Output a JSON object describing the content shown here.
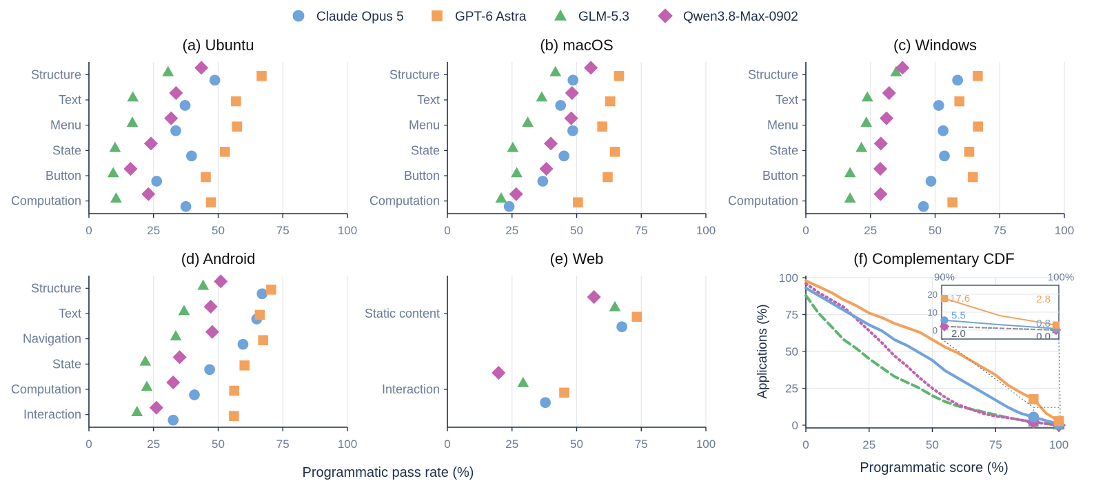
{
  "legend": {
    "placement": "top-center",
    "items": [
      {
        "label": "Claude Opus 5",
        "marker": "circle",
        "color": "#6fa3dc"
      },
      {
        "label": "GPT-6 Astra",
        "marker": "square",
        "color": "#f4a15c"
      },
      {
        "label": "GLM-5.3",
        "marker": "triangle",
        "color": "#5fb56f"
      },
      {
        "label": "Qwen3.8-Max-0902",
        "marker": "diamond",
        "color": "#c261b0"
      }
    ]
  },
  "shared_xlabel": "Programmatic pass rate (%)",
  "chart_data": [
    {
      "type": "scatter",
      "title": "(a) Ubuntu",
      "xlim": [
        0,
        100
      ],
      "xticks": [
        0,
        25,
        50,
        75,
        100
      ],
      "grid": true,
      "categories": [
        "Structure",
        "Text",
        "Menu",
        "State",
        "Button",
        "Computation"
      ],
      "series": [
        {
          "name": "Claude Opus 5",
          "values": [
            48.7,
            37.2,
            33.6,
            39.7,
            26.2,
            37.5
          ]
        },
        {
          "name": "GPT-6 Astra",
          "values": [
            66.8,
            56.9,
            57.3,
            52.6,
            45.2,
            47.2
          ]
        },
        {
          "name": "GLM-5.3",
          "values": [
            30.6,
            17.0,
            16.8,
            10.1,
            9.4,
            10.5
          ]
        },
        {
          "name": "Qwen3.8-Max-0902",
          "values": [
            43.5,
            33.7,
            31.8,
            24.0,
            16.1,
            23.0
          ]
        }
      ]
    },
    {
      "type": "scatter",
      "title": "(b) macOS",
      "xlim": [
        0,
        100
      ],
      "xticks": [
        0,
        25,
        50,
        75,
        100
      ],
      "grid": true,
      "categories": [
        "Structure",
        "Text",
        "Menu",
        "State",
        "Button",
        "Computation"
      ],
      "series": [
        {
          "name": "Claude Opus 5",
          "values": [
            48.6,
            43.8,
            48.5,
            45.1,
            36.9,
            23.9
          ]
        },
        {
          "name": "GPT-6 Astra",
          "values": [
            66.4,
            63.0,
            59.9,
            64.8,
            62.0,
            50.5
          ]
        },
        {
          "name": "GLM-5.3",
          "values": [
            41.8,
            36.5,
            31.1,
            25.3,
            26.8,
            20.8
          ]
        },
        {
          "name": "Qwen3.8-Max-0902",
          "values": [
            55.5,
            48.2,
            47.9,
            40.0,
            38.3,
            26.6
          ]
        }
      ]
    },
    {
      "type": "scatter",
      "title": "(c) Windows",
      "xlim": [
        0,
        100
      ],
      "xticks": [
        0,
        25,
        50,
        75,
        100
      ],
      "grid": true,
      "categories": [
        "Structure",
        "Text",
        "Menu",
        "State",
        "Button",
        "Computation"
      ],
      "series": [
        {
          "name": "Claude Opus 5",
          "values": [
            58.7,
            51.4,
            53.1,
            53.6,
            48.4,
            45.5
          ]
        },
        {
          "name": "GPT-6 Astra",
          "values": [
            66.5,
            59.4,
            66.6,
            63.2,
            64.6,
            56.7
          ]
        },
        {
          "name": "GLM-5.3",
          "values": [
            34.9,
            23.8,
            23.4,
            21.5,
            17.1,
            17.1
          ]
        },
        {
          "name": "Qwen3.8-Max-0902",
          "values": [
            37.4,
            32.2,
            31.2,
            29.0,
            28.8,
            28.9
          ]
        }
      ]
    },
    {
      "type": "scatter",
      "title": "(d) Android",
      "xlim": [
        0,
        100
      ],
      "xticks": [
        0,
        25,
        50,
        75,
        100
      ],
      "grid": true,
      "categories": [
        "Structure",
        "Text",
        "Navigation",
        "State",
        "Computation",
        "Interaction"
      ],
      "series": [
        {
          "name": "Claude Opus 5",
          "values": [
            67.0,
            64.9,
            59.6,
            46.7,
            40.8,
            32.6
          ]
        },
        {
          "name": "GPT-6 Astra",
          "values": [
            70.5,
            66.1,
            67.4,
            60.2,
            56.2,
            56.1
          ]
        },
        {
          "name": "GLM-5.3",
          "values": [
            44.2,
            36.8,
            33.6,
            21.8,
            22.4,
            18.6
          ]
        },
        {
          "name": "Qwen3.8-Max-0902",
          "values": [
            51.0,
            47.1,
            47.7,
            35.1,
            32.6,
            26.1
          ]
        }
      ]
    },
    {
      "type": "scatter",
      "title": "(e) Web",
      "xlim": [
        0,
        100
      ],
      "xticks": [
        0,
        25,
        50,
        75,
        100
      ],
      "grid": true,
      "categories": [
        "Static content",
        "Interaction"
      ],
      "series": [
        {
          "name": "Claude Opus 5",
          "values": [
            67.5,
            37.9
          ]
        },
        {
          "name": "GPT-6 Astra",
          "values": [
            73.3,
            45.2
          ]
        },
        {
          "name": "GLM-5.3",
          "values": [
            64.8,
            29.3
          ]
        },
        {
          "name": "Qwen3.8-Max-0902",
          "values": [
            56.7,
            19.8
          ]
        }
      ]
    },
    {
      "type": "line",
      "title": "(f) Complementary CDF",
      "xlabel": "Programmatic score (%)",
      "ylabel": "Applications (%)",
      "xlim": [
        0,
        100
      ],
      "ylim": [
        0,
        100
      ],
      "xticks": [
        0,
        25,
        50,
        75,
        100
      ],
      "yticks": [
        0,
        25,
        50,
        75,
        100
      ],
      "grid": true,
      "series": [
        {
          "name": "GPT-6 Astra",
          "style": "solid",
          "x": [
            0,
            5,
            10,
            15,
            20,
            25,
            30,
            35,
            40,
            45,
            50,
            55,
            60,
            65,
            70,
            75,
            80,
            85,
            90,
            95,
            100
          ],
          "y": [
            98,
            94,
            90,
            85,
            81,
            76,
            73,
            69,
            66,
            63,
            58,
            53,
            49,
            44,
            39,
            34,
            27,
            22,
            17.6,
            8,
            2.8
          ],
          "markers": [
            {
              "x": 90,
              "y": 17.6
            },
            {
              "x": 100,
              "y": 2.8
            }
          ]
        },
        {
          "name": "Claude Opus 5",
          "style": "solid",
          "x": [
            0,
            5,
            10,
            15,
            20,
            25,
            30,
            35,
            40,
            45,
            50,
            55,
            60,
            65,
            70,
            75,
            80,
            85,
            90,
            95,
            100
          ],
          "y": [
            93,
            88,
            83,
            78,
            73,
            68,
            64,
            58,
            54,
            49,
            44,
            37,
            32,
            27,
            22,
            17,
            12,
            8,
            5.5,
            3,
            0.8
          ],
          "markers": [
            {
              "x": 90,
              "y": 5.5
            },
            {
              "x": 100,
              "y": 0.8
            }
          ]
        },
        {
          "name": "Qwen3.8-Max-0902",
          "style": "dotted",
          "x": [
            0,
            5,
            10,
            15,
            20,
            25,
            30,
            35,
            40,
            45,
            50,
            55,
            60,
            65,
            70,
            75,
            80,
            85,
            90,
            95,
            100
          ],
          "y": [
            96,
            90,
            85,
            80,
            72,
            64,
            56,
            47,
            40,
            32,
            25,
            19,
            14,
            11,
            8,
            6,
            5,
            3.5,
            2.0,
            1,
            0.0
          ],
          "markers": [
            {
              "x": 90,
              "y": 2.0
            },
            {
              "x": 100,
              "y": 0.0
            }
          ]
        },
        {
          "name": "GLM-5.3",
          "style": "dashed",
          "x": [
            0,
            5,
            10,
            15,
            20,
            25,
            30,
            35,
            40,
            45,
            50,
            55,
            60,
            65,
            70,
            75,
            80,
            85,
            90,
            95,
            100
          ],
          "y": [
            88,
            76,
            67,
            58,
            52,
            45,
            39,
            33,
            29,
            25,
            20,
            16,
            13,
            11,
            9,
            7,
            5,
            3.5,
            2.0,
            1,
            0.0
          ],
          "markers": [
            {
              "x": 90,
              "y": 2.0
            },
            {
              "x": 100,
              "y": 0.0
            }
          ]
        }
      ],
      "inset": {
        "xlim": [
          90,
          100
        ],
        "ylim": [
          -5,
          25
        ],
        "xticklabels": [
          "90%",
          "100%"
        ],
        "yticks": [
          0,
          10,
          20
        ],
        "annotations": [
          {
            "series": "GPT-6 Astra",
            "x": 90,
            "text": "17.6"
          },
          {
            "series": "GPT-6 Astra",
            "x": 100,
            "text": "2.8"
          },
          {
            "series": "Claude Opus 5",
            "x": 90,
            "text": "5.5"
          },
          {
            "series": "Claude Opus 5",
            "x": 100,
            "text": "0.8"
          },
          {
            "series": "Qwen3.8-Max-0902",
            "x": 90,
            "text": "2.0"
          },
          {
            "series": "Qwen3.8-Max-0902",
            "x": 100,
            "text": "0.0"
          }
        ]
      }
    }
  ]
}
